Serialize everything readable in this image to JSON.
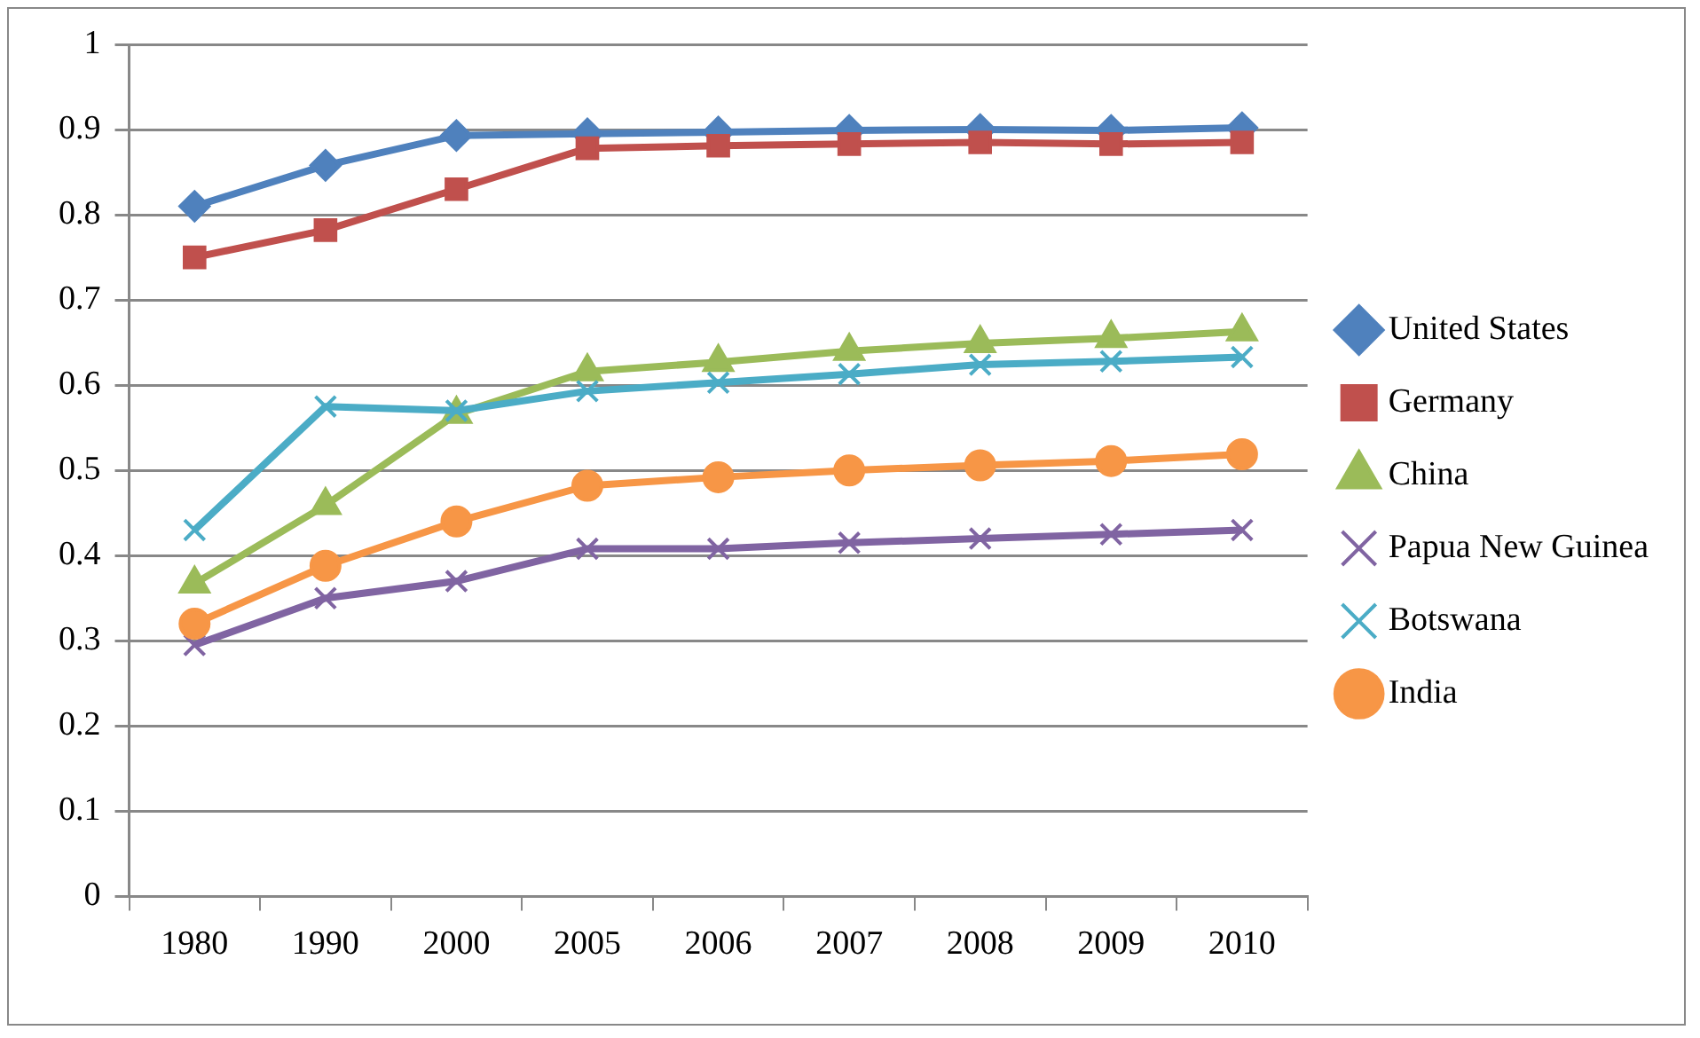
{
  "chart_data": {
    "type": "line",
    "categories": [
      "1980",
      "1990",
      "2000",
      "2005",
      "2006",
      "2007",
      "2008",
      "2009",
      "2010"
    ],
    "ylim": [
      0,
      1
    ],
    "yticks": [
      0,
      0.1,
      0.2,
      0.3,
      0.4,
      0.5,
      0.6,
      0.7,
      0.8,
      0.9,
      1
    ],
    "grid": "y",
    "legend": "right",
    "series": [
      {
        "name": "United States",
        "color": "#4f81bd",
        "marker": "diamond",
        "values": [
          0.81,
          0.858,
          0.893,
          0.895,
          0.897,
          0.899,
          0.9,
          0.899,
          0.902
        ]
      },
      {
        "name": "Germany",
        "color": "#c0504d",
        "marker": "square",
        "values": [
          0.75,
          0.782,
          0.83,
          0.878,
          0.881,
          0.883,
          0.885,
          0.883,
          0.885
        ]
      },
      {
        "name": "China",
        "color": "#9bbb59",
        "marker": "triangle",
        "values": [
          0.367,
          0.459,
          0.566,
          0.616,
          0.627,
          0.64,
          0.649,
          0.655,
          0.663
        ]
      },
      {
        "name": "Papua New Guinea",
        "color": "#8064a2",
        "marker": "cross",
        "values": [
          0.295,
          0.35,
          0.37,
          0.408,
          0.408,
          0.415,
          0.42,
          0.425,
          0.43
        ]
      },
      {
        "name": "Botswana",
        "color": "#4bacc6",
        "marker": "cross",
        "values": [
          0.43,
          0.575,
          0.57,
          0.593,
          0.603,
          0.613,
          0.624,
          0.628,
          0.633
        ]
      },
      {
        "name": "India",
        "color": "#f79646",
        "marker": "circle",
        "values": [
          0.32,
          0.388,
          0.44,
          0.482,
          0.492,
          0.5,
          0.506,
          0.511,
          0.519
        ]
      }
    ]
  }
}
